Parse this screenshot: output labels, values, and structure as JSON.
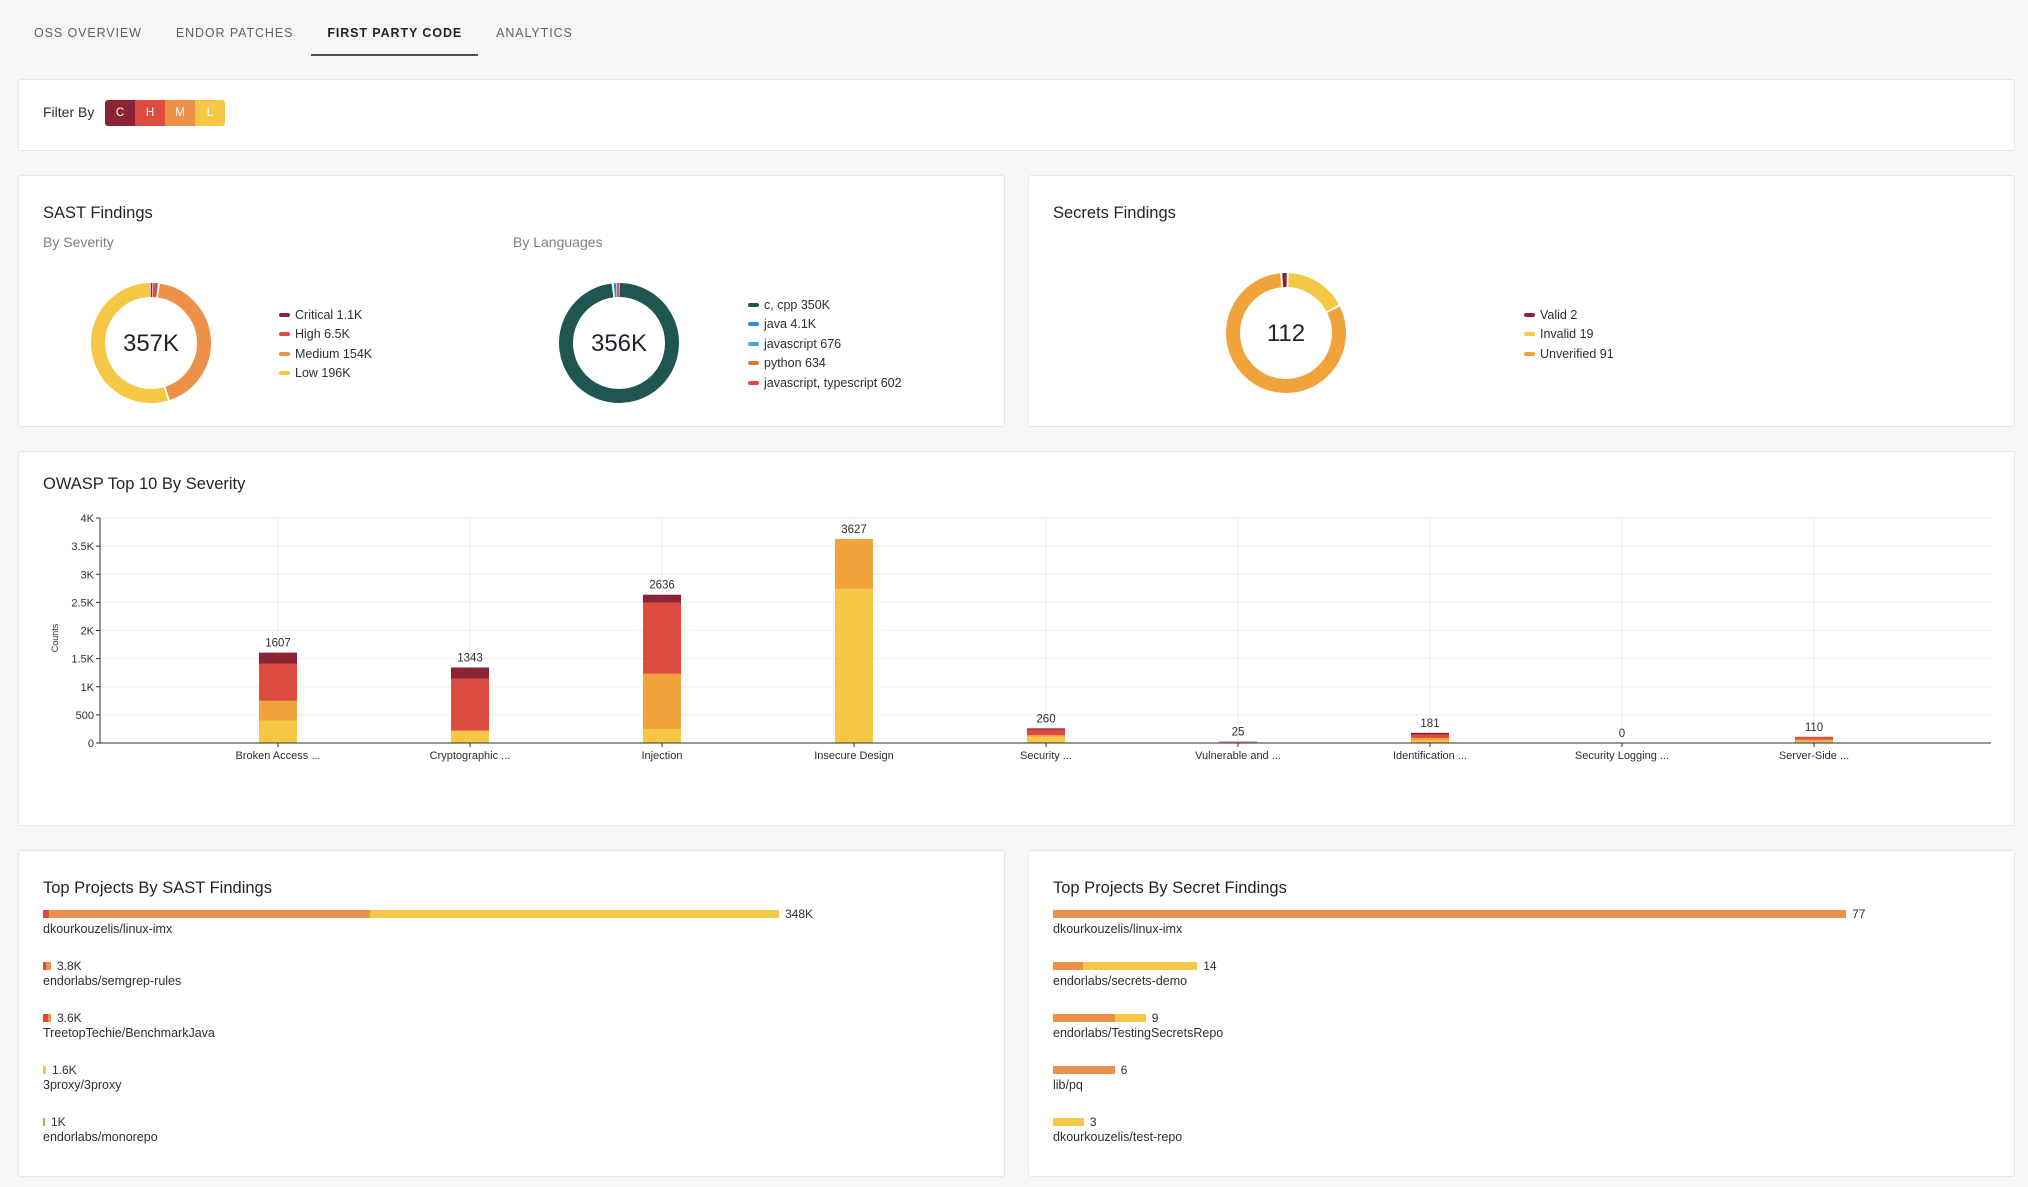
{
  "tabs": [
    {
      "label": "OSS OVERVIEW"
    },
    {
      "label": "ENDOR PATCHES"
    },
    {
      "label": "FIRST PARTY CODE"
    },
    {
      "label": "ANALYTICS"
    }
  ],
  "filter": {
    "label": "Filter By",
    "levels": [
      {
        "label": "C",
        "color": "#8b2535"
      },
      {
        "label": "H",
        "color": "#de4b3f"
      },
      {
        "label": "M",
        "color": "#ee9148"
      },
      {
        "label": "L",
        "color": "#f6c744"
      }
    ]
  },
  "sast": {
    "title": "SAST Findings",
    "by_severity": {
      "subtitle": "By Severity",
      "center_label": "357K",
      "legend": [
        {
          "label": "Critical 1.1K",
          "color": "#8b2535",
          "value": 1100
        },
        {
          "label": "High 6.5K",
          "color": "#de4b3f",
          "value": 6500
        },
        {
          "label": "Medium 154K",
          "color": "#ee9148",
          "value": 154000
        },
        {
          "label": "Low 196K",
          "color": "#f6c744",
          "value": 196000
        }
      ]
    },
    "by_languages": {
      "subtitle": "By Languages",
      "center_label": "356K",
      "legend": [
        {
          "label": "c, cpp 350K",
          "color": "#1f5651",
          "value": 350000
        },
        {
          "label": "java 4.1K",
          "color": "#2e8bd6",
          "value": 4100
        },
        {
          "label": "javascript 676",
          "color": "#46a9c9",
          "value": 676
        },
        {
          "label": "python 634",
          "color": "#d9773a",
          "value": 634
        },
        {
          "label": "javascript, typescript 602",
          "color": "#e24a4a",
          "value": 602
        }
      ]
    }
  },
  "secrets": {
    "title": "Secrets Findings",
    "center_label": "112",
    "legend": [
      {
        "label": "Valid 2",
        "color": "#8b2535",
        "value": 2
      },
      {
        "label": "Invalid 19",
        "color": "#f6c744",
        "value": 19
      },
      {
        "label": "Unverified 91",
        "color": "#f0a33a",
        "value": 91
      }
    ]
  },
  "owasp": {
    "title": "OWASP Top 10 By Severity",
    "chart_data": {
      "type": "bar",
      "stacked": true,
      "ylabel": "Counts",
      "ylim": [
        0,
        4000
      ],
      "yticks": [
        0,
        500,
        1000,
        1500,
        2000,
        2500,
        3000,
        3500,
        4000
      ],
      "ytick_labels": [
        "0",
        "500",
        "1K",
        "1.5K",
        "2K",
        "2.5K",
        "3K",
        "3.5K",
        "4K"
      ],
      "categories": [
        "Broken Access ...",
        "Cryptographic ...",
        "Injection",
        "Insecure Design",
        "Security ...",
        "Vulnerable and ...",
        "Identification ...",
        "Security Logging ...",
        "Server-Side ..."
      ],
      "totals": [
        1607,
        1343,
        2636,
        3627,
        260,
        25,
        181,
        0,
        110
      ],
      "series": [
        {
          "color": "#f6c744",
          "values": [
            400,
            220,
            250,
            2740,
            110,
            8,
            40,
            0,
            30
          ]
        },
        {
          "color": "#f0a33a",
          "values": [
            350,
            0,
            980,
            887,
            30,
            5,
            50,
            0,
            30
          ]
        },
        {
          "color": "#de4b3f",
          "values": [
            657,
            923,
            1266,
            0,
            100,
            10,
            61,
            0,
            50
          ]
        },
        {
          "color": "#8b2535",
          "values": [
            200,
            200,
            140,
            0,
            20,
            2,
            30,
            0,
            0
          ]
        }
      ],
      "grid": true
    }
  },
  "top_sast": {
    "title": "Top Projects By SAST Findings",
    "projects": [
      {
        "name": "dkourkouzelis/linux-imx",
        "value_label": "348K",
        "segments": [
          {
            "color": "#de4b3f",
            "value": 6
          },
          {
            "color": "#ee9148",
            "value": 321
          },
          {
            "color": "#f6c744",
            "value": 409
          }
        ]
      },
      {
        "name": "endorlabs/semgrep-rules",
        "value_label": "3.8K",
        "segments": [
          {
            "color": "#de4b3f",
            "value": 3
          },
          {
            "color": "#ee9148",
            "value": 5
          }
        ]
      },
      {
        "name": "TreetopTechie/BenchmarkJava",
        "value_label": "3.6K",
        "segments": [
          {
            "color": "#de4b3f",
            "value": 5
          },
          {
            "color": "#ee9148",
            "value": 3
          }
        ]
      },
      {
        "name": "3proxy/3proxy",
        "value_label": "1.6K",
        "segments": [
          {
            "color": "#f6c744",
            "value": 3
          }
        ]
      },
      {
        "name": "endorlabs/monorepo",
        "value_label": "1K",
        "segments": [
          {
            "color": "#ee9148",
            "value": 2
          }
        ]
      }
    ]
  },
  "top_secret": {
    "title": "Top Projects By Secret Findings",
    "projects": [
      {
        "name": "dkourkouzelis/linux-imx",
        "value_label": "77",
        "segments": [
          {
            "color": "#ee9148",
            "value": 77
          }
        ]
      },
      {
        "name": "endorlabs/secrets-demo",
        "value_label": "14",
        "segments": [
          {
            "color": "#ee9148",
            "value": 2.9
          },
          {
            "color": "#f6c744",
            "value": 11.1
          }
        ]
      },
      {
        "name": "endorlabs/TestingSecretsRepo",
        "value_label": "9",
        "segments": [
          {
            "color": "#ee9148",
            "value": 6
          },
          {
            "color": "#f6c744",
            "value": 3
          }
        ]
      },
      {
        "name": "lib/pq",
        "value_label": "6",
        "segments": [
          {
            "color": "#ee9148",
            "value": 6
          }
        ]
      },
      {
        "name": "dkourkouzelis/test-repo",
        "value_label": "3",
        "segments": [
          {
            "color": "#f6c744",
            "value": 3
          }
        ]
      }
    ]
  }
}
